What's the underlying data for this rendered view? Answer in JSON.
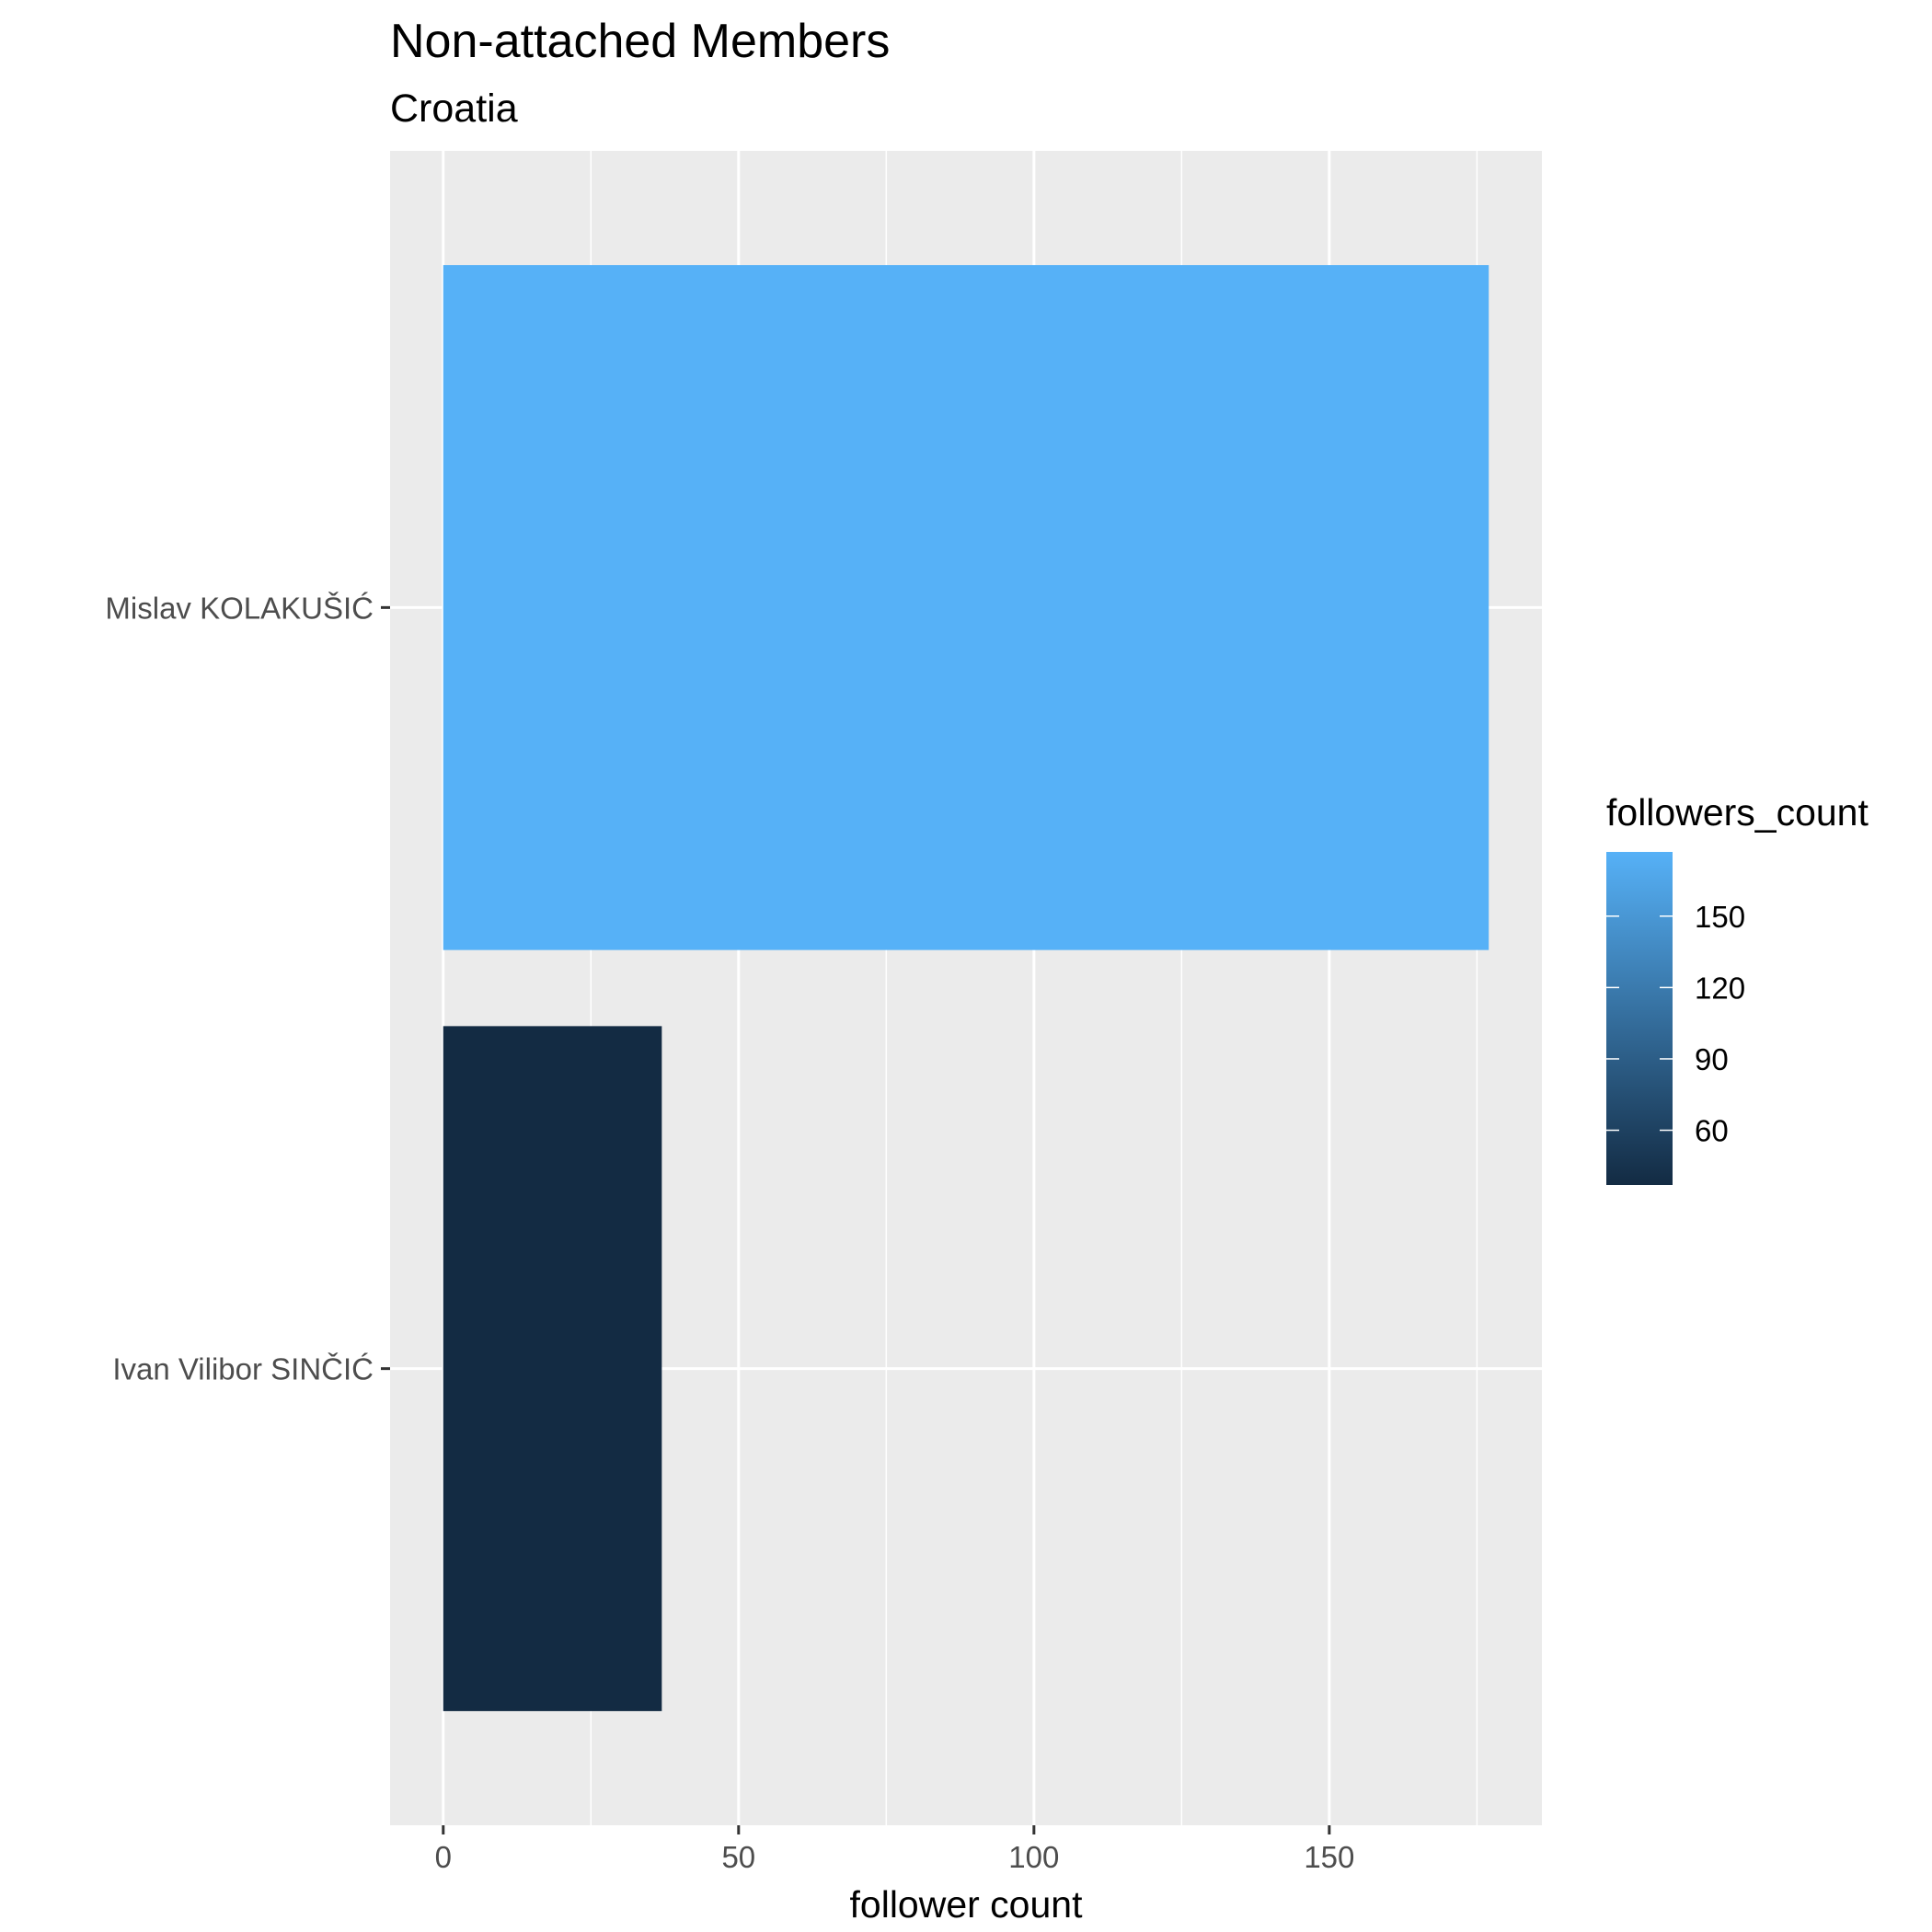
{
  "chart_data": {
    "type": "bar",
    "orientation": "horizontal",
    "title": "Non-attached Members",
    "subtitle": "Croatia",
    "xlabel": "follower count",
    "ylabel": "",
    "categories": [
      "Mislav KOLAKUŠIĆ",
      "Ivan Vilibor SINČIĆ"
    ],
    "values": [
      177,
      37
    ],
    "xlim": [
      -9,
      186
    ],
    "x_ticks": [
      0,
      50,
      100,
      150
    ],
    "x_minor_ticks": [
      25,
      75,
      125,
      175
    ],
    "grid": true,
    "panel_background": "#ebebeb",
    "legend": {
      "title": "followers_count",
      "type": "colorbar",
      "placement": "right",
      "range": [
        37,
        177
      ],
      "ticks": [
        60,
        90,
        120,
        150
      ],
      "color_low": "#132b43",
      "color_high": "#56b1f7"
    }
  }
}
